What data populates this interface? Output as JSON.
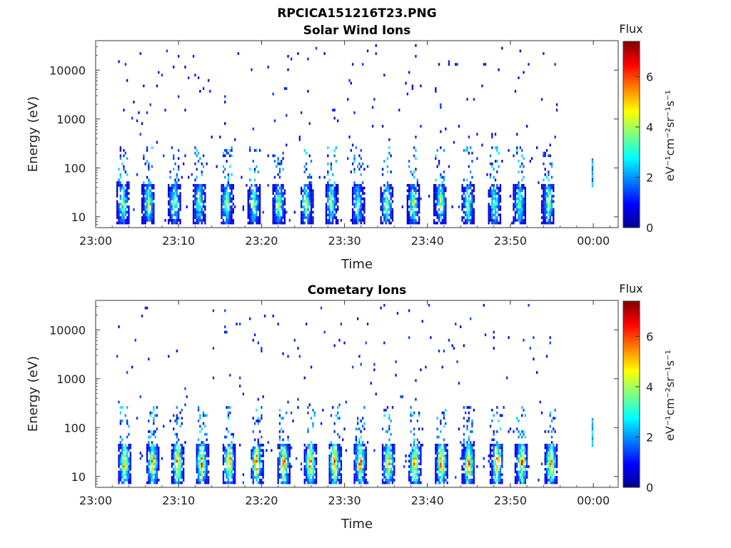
{
  "figure_title": "RPCICA151216T23.PNG",
  "chart_data": [
    {
      "type": "heatmap",
      "title": "Solar Wind Ions",
      "xlabel": "Time",
      "ylabel": "Energy (eV)",
      "y_scale": "log",
      "ylim": [
        6,
        40000
      ],
      "xlim_minutes": [
        0,
        63
      ],
      "x_ticks": [
        {
          "m": 0,
          "label": "23:00"
        },
        {
          "m": 10,
          "label": "23:10"
        },
        {
          "m": 20,
          "label": "23:20"
        },
        {
          "m": 30,
          "label": "23:30"
        },
        {
          "m": 40,
          "label": "23:40"
        },
        {
          "m": 50,
          "label": "23:50"
        },
        {
          "m": 60,
          "label": "00:00"
        }
      ],
      "y_ticks": [
        {
          "v": 10,
          "label": "10"
        },
        {
          "v": 100,
          "label": "100"
        },
        {
          "v": 1000,
          "label": "1000"
        },
        {
          "v": 10000,
          "label": "10000"
        }
      ],
      "colorbar": {
        "label": "Flux",
        "unit": "eV⁻¹cm⁻²sr⁻¹s⁻¹",
        "range": [
          0,
          7.4
        ],
        "ticks": [
          "0",
          "2",
          "4",
          "6"
        ],
        "colormap": "jet"
      },
      "data_window_minutes": [
        2.3,
        55.7
      ],
      "burst_minutes": [
        3.2,
        6.3,
        9.4,
        12.4,
        15.7,
        19,
        22,
        25.3,
        28.3,
        31.5,
        35,
        38.2,
        41.5,
        44.8,
        48,
        51,
        54.5,
        59.8
      ],
      "low_energy_peak_flux": 4.8,
      "high_energy_flux": 0.6
    },
    {
      "type": "heatmap",
      "title": "Cometary Ions",
      "xlabel": "Time",
      "ylabel": "Energy (eV)",
      "y_scale": "log",
      "ylim": [
        6,
        40000
      ],
      "xlim_minutes": [
        0,
        63
      ],
      "x_ticks": [
        {
          "m": 0,
          "label": "23:00"
        },
        {
          "m": 10,
          "label": "23:10"
        },
        {
          "m": 20,
          "label": "23:20"
        },
        {
          "m": 30,
          "label": "23:30"
        },
        {
          "m": 40,
          "label": "23:40"
        },
        {
          "m": 50,
          "label": "23:50"
        },
        {
          "m": 60,
          "label": "00:00"
        }
      ],
      "y_ticks": [
        {
          "v": 10,
          "label": "10"
        },
        {
          "v": 100,
          "label": "100"
        },
        {
          "v": 1000,
          "label": "1000"
        },
        {
          "v": 10000,
          "label": "10000"
        }
      ],
      "colorbar": {
        "label": "Flux",
        "unit": "eV⁻¹cm⁻²sr⁻¹s⁻¹",
        "range": [
          0,
          7.4
        ],
        "ticks": [
          "0",
          "2",
          "4",
          "6"
        ],
        "colormap": "jet"
      },
      "data_window_minutes": [
        2.3,
        55.7
      ],
      "burst_minutes": [
        3.4,
        6.8,
        9.8,
        12.7,
        16,
        19.3,
        22.6,
        25.8,
        28.7,
        31.8,
        35.2,
        38.4,
        41.6,
        44.9,
        48.3,
        51.3,
        54.8,
        59.8
      ],
      "low_energy_peak_flux": 6.9,
      "high_energy_flux": 0.7
    }
  ]
}
